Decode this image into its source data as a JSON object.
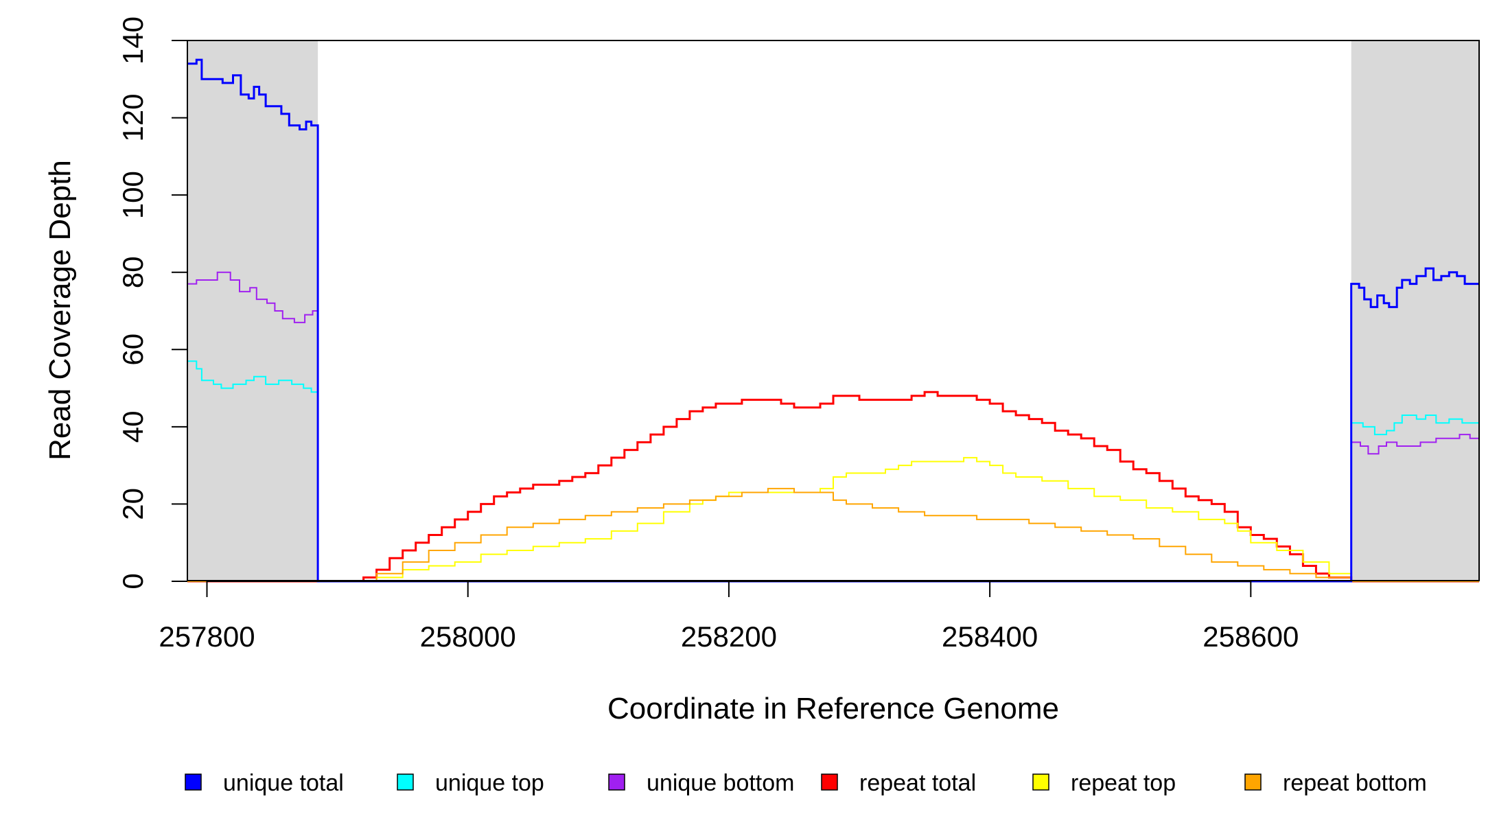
{
  "chart_data": {
    "type": "line",
    "title": "",
    "xlabel": "Coordinate in Reference Genome",
    "ylabel": "Read Coverage Depth",
    "xlim": [
      257785,
      258775
    ],
    "ylim": [
      0,
      140
    ],
    "x_ticks": [
      257800,
      258000,
      258200,
      258400,
      258600
    ],
    "y_ticks": [
      0,
      20,
      40,
      60,
      80,
      100,
      120,
      140
    ],
    "grid": false,
    "legend_position": "bottom",
    "shaded_regions": [
      {
        "x_start": 257785,
        "x_end": 257885,
        "color": "#d9d9d9"
      },
      {
        "x_start": 258677,
        "x_end": 258775,
        "color": "#d9d9d9"
      }
    ],
    "series": [
      {
        "name": "unique total",
        "color": "#0000ff",
        "width": 3,
        "points": [
          [
            257785,
            134
          ],
          [
            257792,
            135
          ],
          [
            257796,
            130
          ],
          [
            257812,
            129
          ],
          [
            257820,
            131
          ],
          [
            257826,
            126
          ],
          [
            257832,
            125
          ],
          [
            257836,
            128
          ],
          [
            257840,
            126
          ],
          [
            257845,
            123
          ],
          [
            257853,
            123
          ],
          [
            257857,
            121
          ],
          [
            257863,
            118
          ],
          [
            257871,
            117
          ],
          [
            257876,
            119
          ],
          [
            257880,
            118
          ],
          [
            257885,
            118
          ],
          [
            257885,
            0
          ],
          [
            258677,
            0
          ],
          [
            258677,
            77
          ],
          [
            258683,
            76
          ],
          [
            258687,
            73
          ],
          [
            258692,
            71
          ],
          [
            258697,
            74
          ],
          [
            258702,
            72
          ],
          [
            258706,
            71
          ],
          [
            258712,
            76
          ],
          [
            258716,
            78
          ],
          [
            258722,
            77
          ],
          [
            258727,
            79
          ],
          [
            258734,
            81
          ],
          [
            258740,
            78
          ],
          [
            258746,
            79
          ],
          [
            258752,
            80
          ],
          [
            258758,
            79
          ],
          [
            258764,
            77
          ],
          [
            258775,
            77
          ]
        ]
      },
      {
        "name": "unique top",
        "color": "#00ffff",
        "width": 2,
        "points": [
          [
            257785,
            57
          ],
          [
            257792,
            55
          ],
          [
            257796,
            52
          ],
          [
            257805,
            51
          ],
          [
            257811,
            50
          ],
          [
            257820,
            51
          ],
          [
            257830,
            52
          ],
          [
            257836,
            53
          ],
          [
            257845,
            51
          ],
          [
            257855,
            52
          ],
          [
            257865,
            51
          ],
          [
            257874,
            50
          ],
          [
            257880,
            49
          ],
          [
            257885,
            47
          ],
          [
            257885,
            0
          ],
          [
            258677,
            0
          ],
          [
            258677,
            41
          ],
          [
            258686,
            40
          ],
          [
            258695,
            38
          ],
          [
            258704,
            39
          ],
          [
            258710,
            41
          ],
          [
            258716,
            43
          ],
          [
            258727,
            42
          ],
          [
            258734,
            43
          ],
          [
            258742,
            41
          ],
          [
            258752,
            42
          ],
          [
            258762,
            41
          ],
          [
            258775,
            41
          ]
        ]
      },
      {
        "name": "unique bottom",
        "color": "#a020f0",
        "width": 2,
        "points": [
          [
            257785,
            77
          ],
          [
            257792,
            78
          ],
          [
            257808,
            80
          ],
          [
            257818,
            78
          ],
          [
            257825,
            75
          ],
          [
            257833,
            76
          ],
          [
            257838,
            73
          ],
          [
            257846,
            72
          ],
          [
            257852,
            70
          ],
          [
            257858,
            68
          ],
          [
            257867,
            67
          ],
          [
            257875,
            69
          ],
          [
            257881,
            70
          ],
          [
            257885,
            70
          ],
          [
            257885,
            0
          ],
          [
            258677,
            0
          ],
          [
            258677,
            36
          ],
          [
            258684,
            35
          ],
          [
            258690,
            33
          ],
          [
            258698,
            35
          ],
          [
            258704,
            36
          ],
          [
            258712,
            35
          ],
          [
            258720,
            35
          ],
          [
            258730,
            36
          ],
          [
            258742,
            37
          ],
          [
            258752,
            37
          ],
          [
            258760,
            38
          ],
          [
            258768,
            37
          ],
          [
            258775,
            36
          ]
        ]
      },
      {
        "name": "repeat total",
        "color": "#ff0000",
        "width": 3,
        "points": [
          [
            257785,
            0
          ],
          [
            257910,
            0
          ],
          [
            257920,
            1
          ],
          [
            257930,
            3
          ],
          [
            257940,
            6
          ],
          [
            257950,
            8
          ],
          [
            257960,
            10
          ],
          [
            257970,
            12
          ],
          [
            257980,
            14
          ],
          [
            257990,
            16
          ],
          [
            258000,
            18
          ],
          [
            258010,
            20
          ],
          [
            258020,
            22
          ],
          [
            258030,
            23
          ],
          [
            258040,
            24
          ],
          [
            258050,
            25
          ],
          [
            258060,
            25
          ],
          [
            258070,
            26
          ],
          [
            258080,
            27
          ],
          [
            258090,
            28
          ],
          [
            258100,
            30
          ],
          [
            258110,
            32
          ],
          [
            258120,
            34
          ],
          [
            258130,
            36
          ],
          [
            258140,
            38
          ],
          [
            258150,
            40
          ],
          [
            258160,
            42
          ],
          [
            258170,
            44
          ],
          [
            258180,
            45
          ],
          [
            258190,
            46
          ],
          [
            258200,
            46
          ],
          [
            258210,
            47
          ],
          [
            258220,
            47
          ],
          [
            258230,
            47
          ],
          [
            258240,
            46
          ],
          [
            258250,
            45
          ],
          [
            258260,
            45
          ],
          [
            258270,
            46
          ],
          [
            258280,
            48
          ],
          [
            258290,
            48
          ],
          [
            258300,
            47
          ],
          [
            258310,
            47
          ],
          [
            258320,
            47
          ],
          [
            258330,
            47
          ],
          [
            258340,
            48
          ],
          [
            258350,
            49
          ],
          [
            258360,
            48
          ],
          [
            258370,
            48
          ],
          [
            258380,
            48
          ],
          [
            258390,
            47
          ],
          [
            258400,
            46
          ],
          [
            258410,
            44
          ],
          [
            258420,
            43
          ],
          [
            258430,
            42
          ],
          [
            258440,
            41
          ],
          [
            258450,
            39
          ],
          [
            258460,
            38
          ],
          [
            258470,
            37
          ],
          [
            258480,
            35
          ],
          [
            258490,
            34
          ],
          [
            258500,
            31
          ],
          [
            258510,
            29
          ],
          [
            258520,
            28
          ],
          [
            258530,
            26
          ],
          [
            258540,
            24
          ],
          [
            258550,
            22
          ],
          [
            258560,
            21
          ],
          [
            258570,
            20
          ],
          [
            258580,
            18
          ],
          [
            258590,
            14
          ],
          [
            258600,
            12
          ],
          [
            258610,
            11
          ],
          [
            258620,
            9
          ],
          [
            258630,
            7
          ],
          [
            258640,
            4
          ],
          [
            258650,
            2
          ],
          [
            258660,
            1
          ],
          [
            258677,
            1
          ],
          [
            258677,
            0
          ],
          [
            258775,
            0
          ]
        ]
      },
      {
        "name": "repeat top",
        "color": "#ffff00",
        "width": 2,
        "points": [
          [
            257785,
            0
          ],
          [
            257910,
            0
          ],
          [
            257930,
            1
          ],
          [
            257950,
            3
          ],
          [
            257970,
            4
          ],
          [
            257990,
            5
          ],
          [
            258010,
            7
          ],
          [
            258030,
            8
          ],
          [
            258050,
            9
          ],
          [
            258070,
            10
          ],
          [
            258090,
            11
          ],
          [
            258110,
            13
          ],
          [
            258130,
            15
          ],
          [
            258150,
            18
          ],
          [
            258170,
            20
          ],
          [
            258180,
            21
          ],
          [
            258190,
            22
          ],
          [
            258200,
            23
          ],
          [
            258220,
            23
          ],
          [
            258240,
            23
          ],
          [
            258260,
            23
          ],
          [
            258270,
            24
          ],
          [
            258280,
            27
          ],
          [
            258290,
            28
          ],
          [
            258300,
            28
          ],
          [
            258320,
            29
          ],
          [
            258330,
            30
          ],
          [
            258340,
            31
          ],
          [
            258350,
            31
          ],
          [
            258360,
            31
          ],
          [
            258380,
            32
          ],
          [
            258390,
            31
          ],
          [
            258400,
            30
          ],
          [
            258410,
            28
          ],
          [
            258420,
            27
          ],
          [
            258440,
            26
          ],
          [
            258460,
            24
          ],
          [
            258480,
            22
          ],
          [
            258500,
            21
          ],
          [
            258520,
            19
          ],
          [
            258540,
            18
          ],
          [
            258560,
            16
          ],
          [
            258580,
            15
          ],
          [
            258590,
            13
          ],
          [
            258600,
            10
          ],
          [
            258620,
            8
          ],
          [
            258640,
            5
          ],
          [
            258660,
            2
          ],
          [
            258677,
            1
          ],
          [
            258677,
            0
          ],
          [
            258775,
            0
          ]
        ]
      },
      {
        "name": "repeat bottom",
        "color": "#ffa500",
        "width": 2,
        "points": [
          [
            257785,
            0
          ],
          [
            257910,
            0
          ],
          [
            257930,
            2
          ],
          [
            257950,
            5
          ],
          [
            257970,
            8
          ],
          [
            257990,
            10
          ],
          [
            258010,
            12
          ],
          [
            258030,
            14
          ],
          [
            258050,
            15
          ],
          [
            258070,
            16
          ],
          [
            258090,
            17
          ],
          [
            258110,
            18
          ],
          [
            258130,
            19
          ],
          [
            258150,
            20
          ],
          [
            258170,
            21
          ],
          [
            258190,
            22
          ],
          [
            258210,
            23
          ],
          [
            258230,
            24
          ],
          [
            258250,
            23
          ],
          [
            258270,
            23
          ],
          [
            258280,
            21
          ],
          [
            258290,
            20
          ],
          [
            258310,
            19
          ],
          [
            258330,
            18
          ],
          [
            258350,
            17
          ],
          [
            258370,
            17
          ],
          [
            258390,
            16
          ],
          [
            258410,
            16
          ],
          [
            258430,
            15
          ],
          [
            258450,
            14
          ],
          [
            258470,
            13
          ],
          [
            258490,
            12
          ],
          [
            258510,
            11
          ],
          [
            258530,
            9
          ],
          [
            258550,
            7
          ],
          [
            258570,
            5
          ],
          [
            258590,
            4
          ],
          [
            258610,
            3
          ],
          [
            258630,
            2
          ],
          [
            258650,
            1
          ],
          [
            258677,
            0
          ],
          [
            258775,
            0
          ]
        ]
      }
    ]
  }
}
